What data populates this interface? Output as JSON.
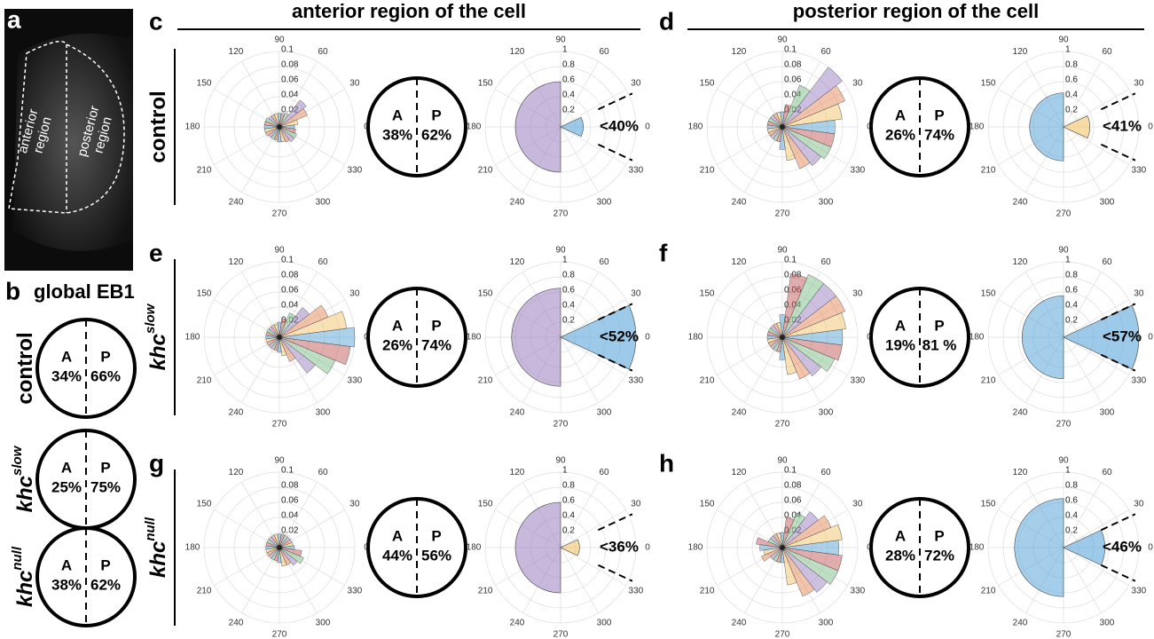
{
  "panel_a": {
    "letter": "a",
    "anterior": [
      "anterior",
      "region"
    ],
    "posterior": [
      "posterior",
      "region"
    ]
  },
  "panel_b": {
    "letter": "b",
    "title": "global EB1",
    "circles": [
      [
        "34%",
        "66%"
      ],
      [
        "25%",
        "75%"
      ],
      [
        "38%",
        "62%"
      ]
    ]
  },
  "genotypes": [
    {
      "text": "control"
    },
    {
      "text": "khc",
      "superscript": "slow"
    },
    {
      "text": "khc",
      "superscript": "null"
    }
  ],
  "region_letters": [
    "A",
    "P"
  ],
  "column_titles": [
    "anterior region of the cell",
    "posterior region of the cell"
  ],
  "polar": {
    "angles": [
      0,
      30,
      60,
      90,
      120,
      150,
      180,
      210,
      240,
      270,
      300,
      330
    ],
    "rose_rlim": [
      0,
      0.1
    ],
    "rose_rticks": [
      0.02,
      0.04,
      0.06,
      0.08,
      0.1
    ],
    "fan_rlim": [
      0,
      1
    ],
    "fan_rticks": [
      0.2,
      0.4,
      0.6,
      0.8,
      1
    ],
    "palette": [
      "#5aa6d8",
      "#f2c46a",
      "#e58a5a",
      "#9a7fc0",
      "#7fbf8a",
      "#c45a5a"
    ]
  },
  "panels": [
    {
      "letter": "c",
      "rose": [
        0.02,
        0.025,
        0.04,
        0.045,
        0.02,
        0.018,
        0.018,
        0.018,
        0.018,
        0.018,
        0.02,
        0.02,
        0.02,
        0.02,
        0.02,
        0.018,
        0.018,
        0.018,
        0.02,
        0.02,
        0.022,
        0.025,
        0.025,
        0.022
      ],
      "circle": [
        "38%",
        "62%"
      ],
      "semicircle": 0.6,
      "wedge": 0.3,
      "wedge_label": "<40%"
    },
    {
      "letter": "d",
      "rose": [
        0.07,
        0.08,
        0.09,
        0.1,
        0.06,
        0.03,
        0.02,
        0.02,
        0.02,
        0.02,
        0.02,
        0.02,
        0.02,
        0.02,
        0.02,
        0.02,
        0.02,
        0.02,
        0.03,
        0.045,
        0.06,
        0.065,
        0.07,
        0.07
      ],
      "circle": [
        "26%",
        "74%"
      ],
      "semicircle": 0.45,
      "wedge": 0.35,
      "wedge_label": "<41%"
    },
    {
      "letter": "e",
      "rose": [
        0.1,
        0.09,
        0.07,
        0.05,
        0.035,
        0.025,
        0.02,
        0.018,
        0.018,
        0.018,
        0.018,
        0.018,
        0.018,
        0.018,
        0.018,
        0.018,
        0.018,
        0.018,
        0.02,
        0.025,
        0.035,
        0.06,
        0.08,
        0.095
      ],
      "circle": [
        "26%",
        "74%"
      ],
      "semicircle": 0.65,
      "wedge": 1,
      "wedge_label": "<52%"
    },
    {
      "letter": "f",
      "rose": [
        0.08,
        0.085,
        0.09,
        0.09,
        0.09,
        0.085,
        0.03,
        0.02,
        0.02,
        0.02,
        0.02,
        0.02,
        0.02,
        0.02,
        0.02,
        0.02,
        0.02,
        0.02,
        0.03,
        0.05,
        0.06,
        0.065,
        0.075,
        0.08
      ],
      "circle": [
        "19%",
        "81 %"
      ],
      "semicircle": 0.55,
      "wedge": 1,
      "wedge_label": "<57%"
    },
    {
      "letter": "g",
      "rose": [
        0.02,
        0.018,
        0.018,
        0.018,
        0.018,
        0.018,
        0.018,
        0.018,
        0.018,
        0.018,
        0.018,
        0.018,
        0.018,
        0.018,
        0.018,
        0.018,
        0.018,
        0.018,
        0.02,
        0.025,
        0.025,
        0.03,
        0.035,
        0.03
      ],
      "circle": [
        "44%",
        "56%"
      ],
      "semicircle": 0.6,
      "wedge": 0.25,
      "wedge_label": "<36%"
    },
    {
      "letter": "h",
      "rose": [
        0.075,
        0.08,
        0.07,
        0.06,
        0.05,
        0.04,
        0.02,
        0.02,
        0.02,
        0.02,
        0.02,
        0.035,
        0.03,
        0.025,
        0.03,
        0.02,
        0.02,
        0.02,
        0.02,
        0.05,
        0.07,
        0.075,
        0.08,
        0.08
      ],
      "circle": [
        "28%",
        "72%"
      ],
      "semicircle": 0.65,
      "wedge": 0.55,
      "wedge_label": "<46%"
    }
  ]
}
